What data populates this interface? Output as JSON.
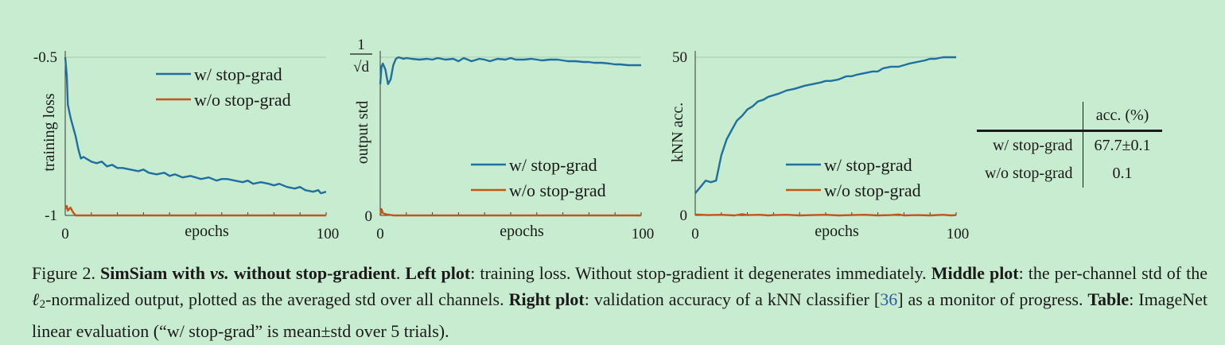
{
  "colors": {
    "with_stopgrad": "#1f6f9f",
    "without_stopgrad": "#c2551a"
  },
  "chart_data": [
    {
      "type": "line",
      "xlabel": "epochs",
      "ylabel": "training loss",
      "xlim": [
        0,
        100
      ],
      "ylim": [
        -1,
        -0.5
      ],
      "xticks": [
        "0",
        "100"
      ],
      "yticks": [
        "-0.5",
        "-1"
      ],
      "grid": false,
      "legend": "top-right",
      "series": [
        {
          "name": "w/ stop-grad",
          "x": [
            0,
            0.6,
            1,
            2,
            3,
            4,
            5,
            6,
            7,
            8,
            9,
            10,
            12,
            14,
            16,
            18,
            20,
            22,
            25,
            28,
            30,
            32,
            35,
            38,
            40,
            42,
            45,
            48,
            50,
            52,
            55,
            58,
            60,
            62,
            65,
            68,
            70,
            72,
            75,
            78,
            80,
            82,
            85,
            88,
            90,
            92,
            95,
            97,
            98,
            100
          ],
          "y": [
            -0.5,
            -0.56,
            -0.65,
            -0.69,
            -0.72,
            -0.75,
            -0.79,
            -0.82,
            -0.815,
            -0.82,
            -0.825,
            -0.83,
            -0.835,
            -0.83,
            -0.845,
            -0.84,
            -0.85,
            -0.85,
            -0.855,
            -0.86,
            -0.855,
            -0.865,
            -0.87,
            -0.865,
            -0.875,
            -0.87,
            -0.88,
            -0.875,
            -0.88,
            -0.885,
            -0.88,
            -0.89,
            -0.885,
            -0.885,
            -0.89,
            -0.895,
            -0.89,
            -0.9,
            -0.895,
            -0.9,
            -0.905,
            -0.9,
            -0.91,
            -0.915,
            -0.91,
            -0.92,
            -0.925,
            -0.92,
            -0.93,
            -0.925
          ]
        },
        {
          "name": "w/o stop-grad",
          "x": [
            0,
            0.6,
            1,
            2,
            3,
            4,
            5,
            6,
            8,
            10,
            20,
            30,
            40,
            50,
            60,
            70,
            80,
            90,
            100
          ],
          "y": [
            -0.98,
            -0.97,
            -0.985,
            -0.975,
            -0.99,
            -1,
            -1,
            -1,
            -1,
            -1,
            -1,
            -1,
            -1,
            -1,
            -1,
            -1,
            -1,
            -1,
            -1
          ]
        }
      ]
    },
    {
      "type": "line",
      "xlabel": "epochs",
      "ylabel": "output std",
      "xlim": [
        0,
        100
      ],
      "ylim": [
        0,
        1
      ],
      "xticks": [
        "0",
        "100"
      ],
      "yticks": [
        "1/√d",
        "0"
      ],
      "grid": false,
      "legend": "bottom-right",
      "series": [
        {
          "name": "w/ stop-grad",
          "x": [
            0,
            0.5,
            1,
            2,
            3,
            4,
            5,
            6,
            7,
            8,
            9,
            10,
            12,
            15,
            18,
            20,
            22,
            25,
            28,
            30,
            32,
            35,
            38,
            40,
            42,
            45,
            48,
            50,
            52,
            55,
            58,
            60,
            62,
            65,
            68,
            70,
            72,
            75,
            78,
            80,
            82,
            85,
            88,
            90,
            92,
            95,
            98,
            100
          ],
          "y": [
            0.83,
            0.94,
            0.96,
            0.92,
            0.83,
            0.86,
            0.95,
            0.99,
            1,
            0.995,
            0.99,
            0.995,
            0.99,
            0.985,
            0.99,
            0.985,
            0.995,
            0.985,
            0.99,
            0.975,
            0.995,
            0.975,
            0.99,
            0.985,
            0.975,
            0.99,
            0.985,
            0.995,
            0.985,
            0.985,
            0.99,
            0.985,
            0.98,
            0.985,
            0.985,
            0.98,
            0.975,
            0.975,
            0.97,
            0.97,
            0.965,
            0.965,
            0.96,
            0.955,
            0.955,
            0.95,
            0.95,
            0.95
          ]
        },
        {
          "name": "w/o stop-grad",
          "x": [
            0,
            0.5,
            1,
            2,
            3,
            4,
            5,
            6,
            8,
            10,
            20,
            30,
            40,
            50,
            60,
            70,
            80,
            90,
            100
          ],
          "y": [
            0.0,
            0.04,
            0.015,
            0.008,
            0.005,
            0.003,
            0,
            0,
            0,
            0,
            0,
            0,
            0,
            0,
            0,
            0,
            0,
            0,
            0
          ]
        }
      ]
    },
    {
      "type": "line",
      "xlabel": "epochs",
      "ylabel": "kNN acc.",
      "xlim": [
        0,
        100
      ],
      "ylim": [
        0,
        50
      ],
      "xticks": [
        "0",
        "100"
      ],
      "yticks": [
        "50",
        "0"
      ],
      "grid": false,
      "legend": "bottom-right",
      "series": [
        {
          "name": "w/ stop-grad",
          "x": [
            0,
            2,
            4,
            6,
            8,
            10,
            12,
            14,
            16,
            18,
            20,
            22,
            24,
            26,
            28,
            30,
            32,
            35,
            38,
            40,
            42,
            45,
            48,
            50,
            52,
            55,
            58,
            60,
            62,
            65,
            68,
            70,
            72,
            75,
            78,
            80,
            82,
            85,
            88,
            90,
            92,
            95,
            98,
            100
          ],
          "y": [
            7,
            9,
            11,
            10.5,
            11,
            19,
            24,
            27,
            30,
            31.5,
            33.5,
            34.5,
            36,
            36.5,
            37.5,
            38,
            38.5,
            39.5,
            40,
            40.5,
            41,
            41.5,
            42,
            42.5,
            42.5,
            43,
            44,
            44,
            44.5,
            45,
            45.5,
            45.5,
            46.5,
            47,
            47,
            47.5,
            48,
            48.5,
            49,
            49.5,
            49.5,
            50,
            50,
            50
          ]
        },
        {
          "name": "w/o stop-grad",
          "x": [
            0,
            5,
            10,
            15,
            18,
            20,
            25,
            28,
            30,
            35,
            40,
            45,
            50,
            55,
            60,
            65,
            70,
            75,
            78,
            80,
            85,
            90,
            95,
            98,
            100
          ],
          "y": [
            0.3,
            0.1,
            0.2,
            0,
            0.4,
            0.1,
            0.2,
            0,
            0.1,
            0.2,
            0,
            0.1,
            0.2,
            0,
            0.1,
            0.2,
            0,
            0.1,
            0.3,
            0,
            0.1,
            0,
            0.2,
            0,
            0.1
          ]
        }
      ]
    }
  ],
  "table": {
    "header": "acc. (%)",
    "rows": [
      {
        "label": "w/ stop-grad",
        "value": "67.7±0.1"
      },
      {
        "label": "w/o stop-grad",
        "value": "0.1"
      }
    ]
  },
  "caption": {
    "fig_label": "Figure 2.",
    "title_bold_1": "SimSiam with",
    "title_vs": "vs.",
    "title_bold_2": "without stop-gradient",
    "left_label": "Left plot",
    "left_text": ": training loss. Without stop-gradient it degenerates immediately.",
    "middle_label": "Middle plot",
    "middle_text_a": ": the per-channel std of the",
    "ell": "ℓ",
    "ell_sub": "2",
    "middle_text_b": "-normalized output, plotted as the averaged std over all channels.",
    "right_label": "Right plot",
    "right_text_a": ": validation accuracy of a kNN classifier [",
    "cite": "36",
    "right_text_b": "] as a monitor of progress.",
    "table_label": "Table",
    "table_text": ": ImageNet linear evaluation (“w/ stop-grad” is mean±std over 5 trials)."
  }
}
